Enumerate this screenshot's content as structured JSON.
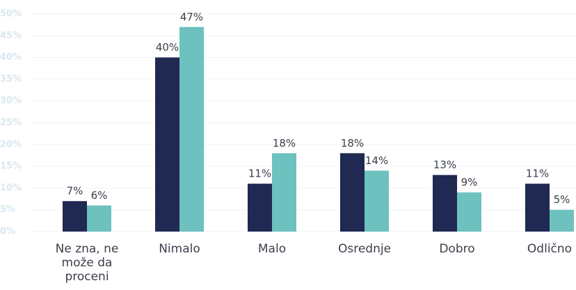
{
  "chart_data": {
    "type": "bar",
    "categories": [
      "Ne zna, ne može da proceni",
      "Nimalo",
      "Malo",
      "Osrednje",
      "Dobro",
      "Odlično"
    ],
    "series": [
      {
        "color": "#1f2951",
        "values": [
          7,
          40,
          11,
          18,
          13,
          11
        ],
        "value_labels": [
          "7%",
          "40%",
          "11%",
          "18%",
          "13%",
          "11%"
        ]
      },
      {
        "color": "#6dc1bf",
        "values": [
          6,
          47,
          18,
          14,
          9,
          5
        ],
        "value_labels": [
          "6%",
          "47%",
          "18%",
          "14%",
          "9%",
          "5%"
        ]
      }
    ],
    "ylim": [
      0,
      50
    ],
    "yticks": [
      {
        "value": 0,
        "label": "0%"
      },
      {
        "value": 5,
        "label": "5%"
      },
      {
        "value": 10,
        "label": "10%"
      },
      {
        "value": 15,
        "label": "15%"
      },
      {
        "value": 20,
        "label": "20%"
      },
      {
        "value": 25,
        "label": "25%"
      },
      {
        "value": 30,
        "label": "30%"
      },
      {
        "value": 35,
        "label": "35%"
      },
      {
        "value": 40,
        "label": "40%"
      },
      {
        "value": 45,
        "label": "45%"
      },
      {
        "value": 50,
        "label": "50%"
      }
    ],
    "grid": true
  }
}
